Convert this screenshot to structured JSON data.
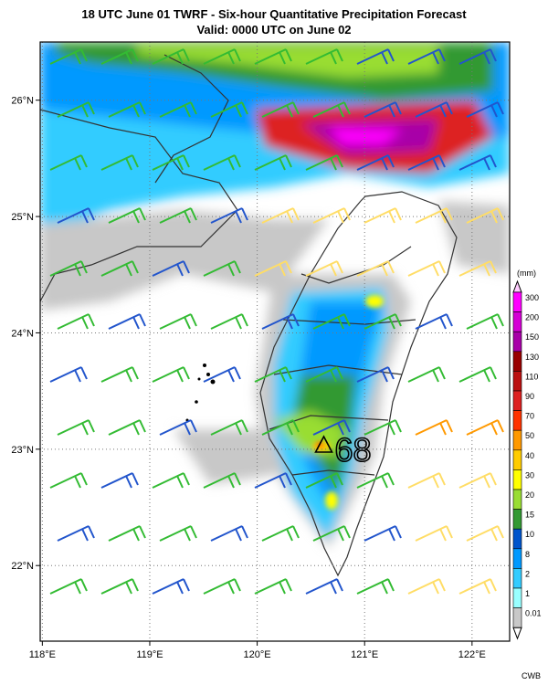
{
  "header": {
    "title": "18 UTC June 01 TWRF - Six-hour Quantitative Precipitation Forecast",
    "subtitle": "Valid: 0000 UTC on June 02"
  },
  "axes": {
    "lon_labels": [
      "118°E",
      "119°E",
      "120°E",
      "121°E",
      "122°E"
    ],
    "lat_labels": [
      "26°N",
      "25°N",
      "24°N",
      "23°N",
      "22°N"
    ],
    "lon_range": [
      117.98,
      122.35
    ],
    "lat_range": [
      21.35,
      26.5
    ],
    "grid": "dotted"
  },
  "colorbar": {
    "unit": "(mm)",
    "levels": [
      "300",
      "200",
      "150",
      "130",
      "110",
      "90",
      "70",
      "50",
      "40",
      "30",
      "20",
      "15",
      "10",
      "8",
      "2",
      "1",
      "0.01"
    ],
    "colors": [
      "#ff00ff",
      "#d500d5",
      "#a800a8",
      "#990000",
      "#bb1010",
      "#dd2020",
      "#ff3300",
      "#ff9900",
      "#ffcc00",
      "#ffff00",
      "#99dd33",
      "#339933",
      "#0055cc",
      "#0099ff",
      "#33ccff",
      "#99ffff",
      "#c8c8c8"
    ]
  },
  "annotation": {
    "station_symbol": "triangle",
    "max_value": "68",
    "lon": 120.62,
    "lat": 23.03
  },
  "credit": "CWB",
  "colors": {
    "precip_light": "#c8c8c8",
    "wind_green": "#33bb33",
    "wind_blue": "#2255cc",
    "wind_yellow": "#ffdd66",
    "wind_orange": "#ff9900",
    "coast": "#333333"
  }
}
